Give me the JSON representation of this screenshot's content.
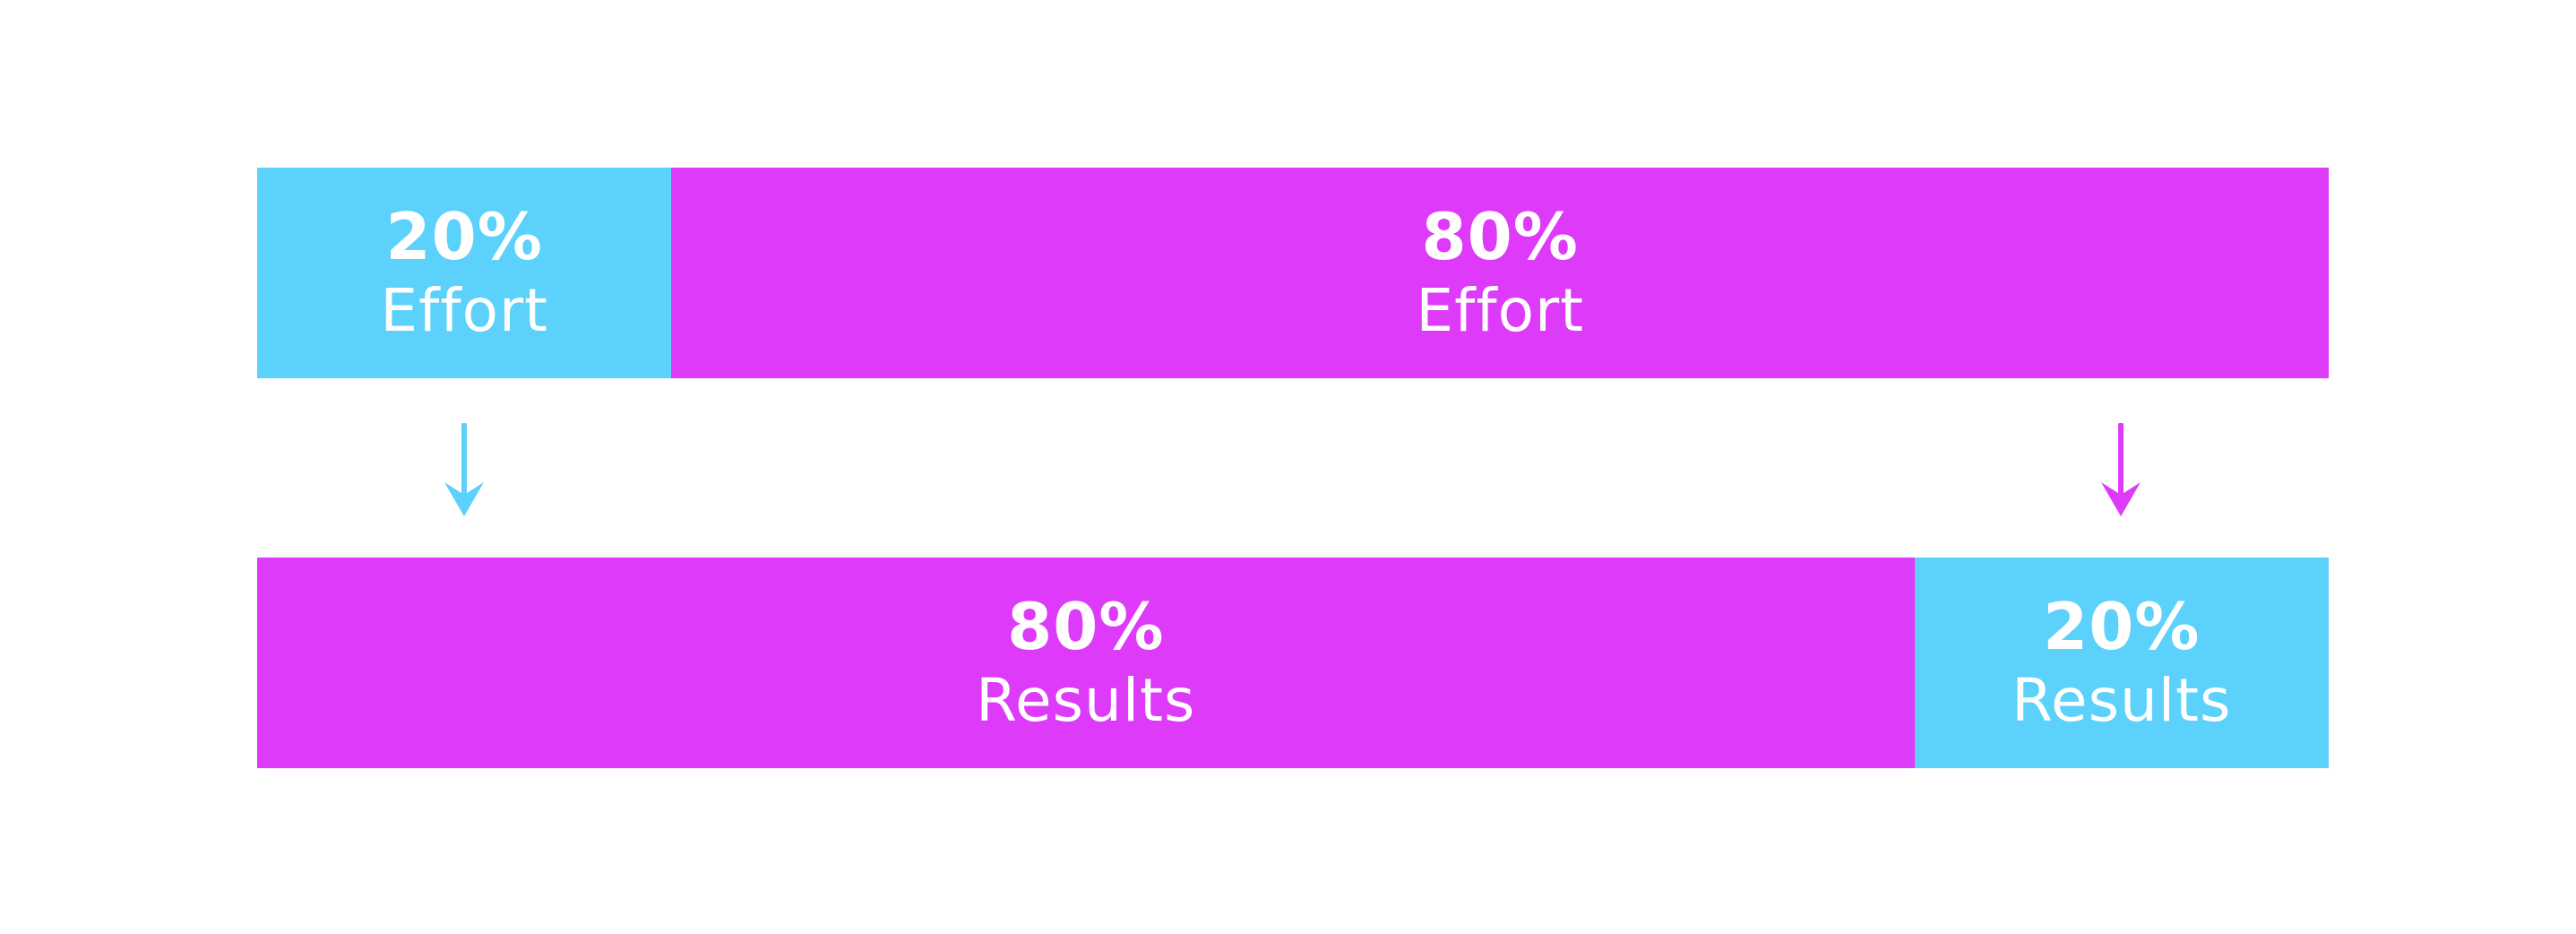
{
  "colors": {
    "blue": "#5bd1fb",
    "magenta": "#dd3af9",
    "text": "#ffffff"
  },
  "effort_row": [
    {
      "percent": "20%",
      "share": 0.2,
      "label": "Effort",
      "color": "blue"
    },
    {
      "percent": "80%",
      "share": 0.8,
      "label": "Effort",
      "color": "magenta"
    }
  ],
  "results_row": [
    {
      "percent": "80%",
      "share": 0.8,
      "label": "Results",
      "color": "magenta"
    },
    {
      "percent": "20%",
      "share": 0.2,
      "label": "Results",
      "color": "blue"
    }
  ],
  "arrows": [
    {
      "icon": "arrow-down-icon",
      "color": "blue"
    },
    {
      "icon": "arrow-down-icon",
      "color": "magenta"
    }
  ]
}
